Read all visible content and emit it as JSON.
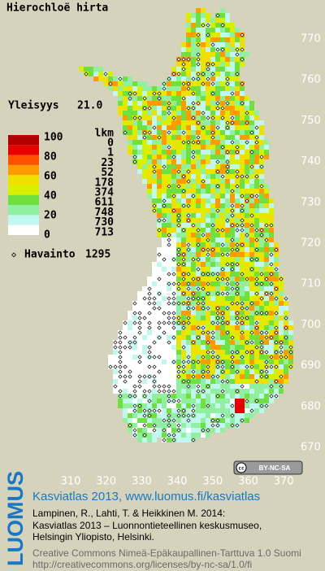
{
  "title": "Hierochloë hirta",
  "frequency": {
    "label": "Yleisyys",
    "value": "21.0"
  },
  "legend": {
    "scale_labels": [
      "100",
      "80",
      "60",
      "40",
      "20",
      "0"
    ],
    "count_header": "lkm",
    "counts": [
      0,
      1,
      23,
      52,
      178,
      374,
      611,
      748,
      730,
      713
    ],
    "colors": [
      "#b00000",
      "#e80000",
      "#ff5000",
      "#ff9a00",
      "#f0e000",
      "#d8f000",
      "#70e040",
      "#90f0a0",
      "#c0f8f0",
      "#ffffff"
    ]
  },
  "observations": {
    "label": "Havainto",
    "count": 1295
  },
  "axes": {
    "y_ticks": [
      770,
      760,
      750,
      740,
      730,
      720,
      710,
      700,
      690,
      680,
      670
    ],
    "x_ticks": [
      310,
      320,
      330,
      340,
      350,
      360,
      370
    ]
  },
  "license_badge": "BY-NC-SA",
  "footer": {
    "brand": "LUOMUS",
    "headline": "Kasviatlas 2013, www.luomus.fi/kasviatlas",
    "citation": [
      "Lampinen, R., Lahti, T. & Heikkinen M. 2014:",
      "Kasviatlas 2013 – Luonnontieteellinen keskusmuseo,",
      "Helsingin Yliopisto, Helsinki."
    ],
    "license": [
      "Creative Commons Nimeä-Epäkaupallinen-Tarttuva 1.0 Suomi",
      "http://creativecommons.org/licenses/by-nc-sa/1.0/fi"
    ]
  }
}
